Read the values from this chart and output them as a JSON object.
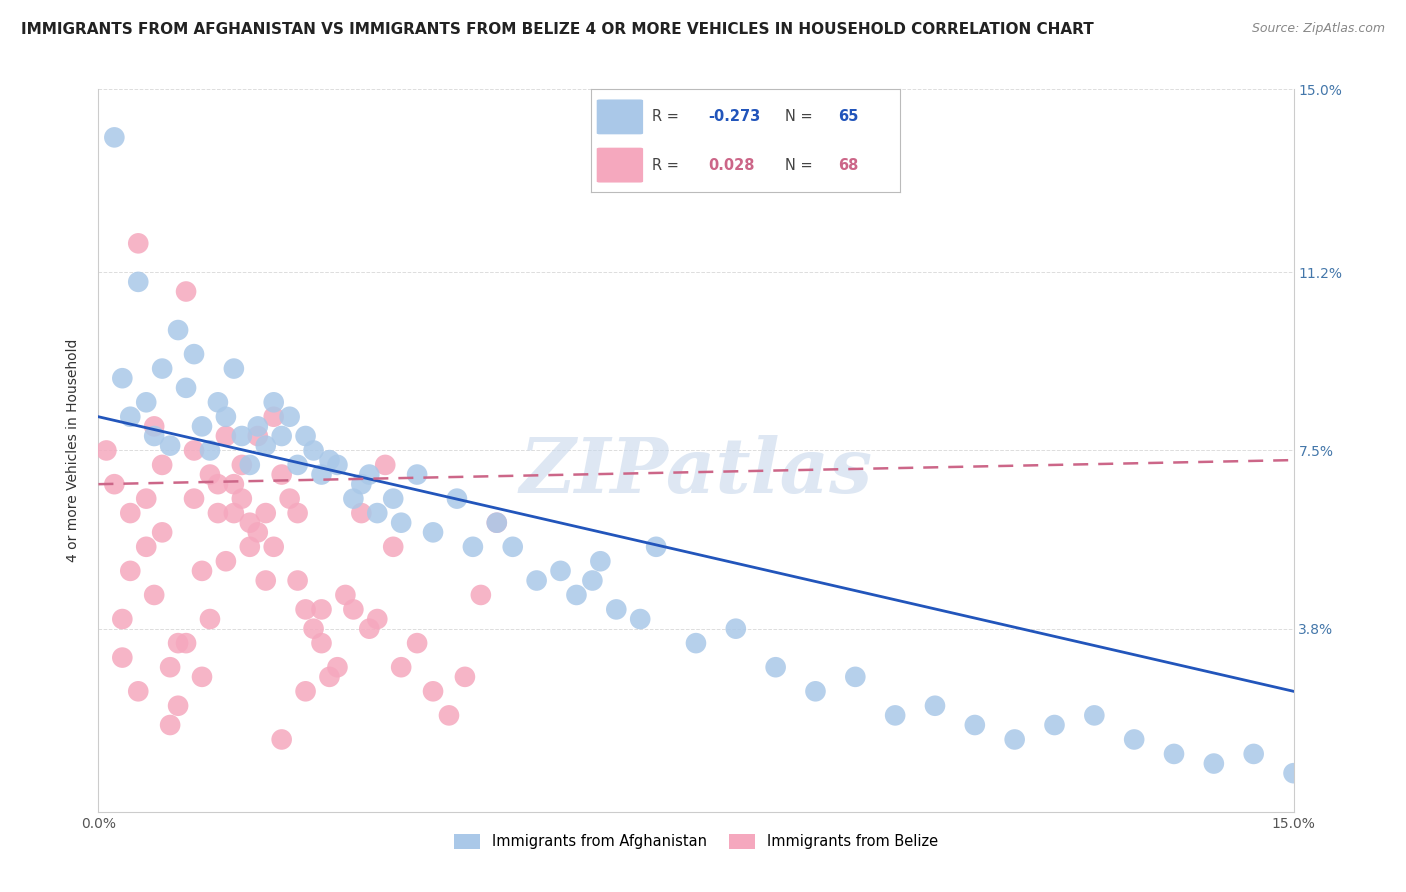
{
  "title": "IMMIGRANTS FROM AFGHANISTAN VS IMMIGRANTS FROM BELIZE 4 OR MORE VEHICLES IN HOUSEHOLD CORRELATION CHART",
  "source": "Source: ZipAtlas.com",
  "ylabel": "4 or more Vehicles in Household",
  "xmin": 0.0,
  "xmax": 0.15,
  "ymin": 0.0,
  "ymax": 0.15,
  "yticks": [
    0.0,
    0.038,
    0.075,
    0.112,
    0.15
  ],
  "ytick_labels": [
    "",
    "3.8%",
    "7.5%",
    "11.2%",
    "15.0%"
  ],
  "xticks": [
    0.0,
    0.05,
    0.1,
    0.15
  ],
  "xtick_labels": [
    "0.0%",
    "",
    "",
    "15.0%"
  ],
  "legend_blue_r": "-0.273",
  "legend_blue_n": "65",
  "legend_pink_r": "0.028",
  "legend_pink_n": "68",
  "afghanistan_color": "#aac8e8",
  "belize_color": "#f5a8be",
  "afghanistan_line_color": "#2255bb",
  "belize_line_color": "#cc6688",
  "watermark": "ZIPatlas",
  "background_color": "#ffffff",
  "grid_color": "#dddddd",
  "afghanistan_x": [
    0.002,
    0.003,
    0.004,
    0.005,
    0.006,
    0.007,
    0.008,
    0.009,
    0.01,
    0.011,
    0.012,
    0.013,
    0.014,
    0.015,
    0.016,
    0.017,
    0.018,
    0.019,
    0.02,
    0.021,
    0.022,
    0.023,
    0.024,
    0.025,
    0.026,
    0.027,
    0.028,
    0.029,
    0.03,
    0.032,
    0.033,
    0.034,
    0.035,
    0.037,
    0.038,
    0.04,
    0.042,
    0.045,
    0.047,
    0.05,
    0.052,
    0.055,
    0.058,
    0.06,
    0.062,
    0.065,
    0.068,
    0.07,
    0.075,
    0.08,
    0.085,
    0.09,
    0.095,
    0.1,
    0.105,
    0.11,
    0.115,
    0.12,
    0.125,
    0.13,
    0.135,
    0.14,
    0.145,
    0.15,
    0.063
  ],
  "afghanistan_y": [
    0.14,
    0.09,
    0.082,
    0.11,
    0.085,
    0.078,
    0.092,
    0.076,
    0.1,
    0.088,
    0.095,
    0.08,
    0.075,
    0.085,
    0.082,
    0.092,
    0.078,
    0.072,
    0.08,
    0.076,
    0.085,
    0.078,
    0.082,
    0.072,
    0.078,
    0.075,
    0.07,
    0.073,
    0.072,
    0.065,
    0.068,
    0.07,
    0.062,
    0.065,
    0.06,
    0.07,
    0.058,
    0.065,
    0.055,
    0.06,
    0.055,
    0.048,
    0.05,
    0.045,
    0.048,
    0.042,
    0.04,
    0.055,
    0.035,
    0.038,
    0.03,
    0.025,
    0.028,
    0.02,
    0.022,
    0.018,
    0.015,
    0.018,
    0.02,
    0.015,
    0.012,
    0.01,
    0.012,
    0.008,
    0.052
  ],
  "belize_x": [
    0.001,
    0.002,
    0.003,
    0.004,
    0.005,
    0.006,
    0.007,
    0.008,
    0.009,
    0.01,
    0.011,
    0.012,
    0.013,
    0.014,
    0.015,
    0.016,
    0.017,
    0.018,
    0.019,
    0.02,
    0.021,
    0.022,
    0.023,
    0.024,
    0.025,
    0.026,
    0.027,
    0.028,
    0.029,
    0.03,
    0.031,
    0.032,
    0.033,
    0.034,
    0.035,
    0.036,
    0.037,
    0.038,
    0.04,
    0.042,
    0.044,
    0.046,
    0.048,
    0.05,
    0.012,
    0.015,
    0.018,
    0.02,
    0.022,
    0.025,
    0.003,
    0.004,
    0.005,
    0.006,
    0.007,
    0.008,
    0.009,
    0.01,
    0.011,
    0.013,
    0.014,
    0.016,
    0.017,
    0.019,
    0.021,
    0.023,
    0.026,
    0.028
  ],
  "belize_y": [
    0.075,
    0.068,
    0.04,
    0.062,
    0.118,
    0.055,
    0.08,
    0.072,
    0.03,
    0.035,
    0.108,
    0.065,
    0.028,
    0.07,
    0.062,
    0.052,
    0.068,
    0.065,
    0.06,
    0.058,
    0.062,
    0.055,
    0.07,
    0.065,
    0.062,
    0.042,
    0.038,
    0.035,
    0.028,
    0.03,
    0.045,
    0.042,
    0.062,
    0.038,
    0.04,
    0.072,
    0.055,
    0.03,
    0.035,
    0.025,
    0.02,
    0.028,
    0.045,
    0.06,
    0.075,
    0.068,
    0.072,
    0.078,
    0.082,
    0.048,
    0.032,
    0.05,
    0.025,
    0.065,
    0.045,
    0.058,
    0.018,
    0.022,
    0.035,
    0.05,
    0.04,
    0.078,
    0.062,
    0.055,
    0.048,
    0.015,
    0.025,
    0.042
  ],
  "af_line_x0": 0.0,
  "af_line_y0": 0.082,
  "af_line_x1": 0.15,
  "af_line_y1": 0.025,
  "bz_line_x0": 0.0,
  "bz_line_y0": 0.068,
  "bz_line_x1": 0.15,
  "bz_line_y1": 0.073
}
